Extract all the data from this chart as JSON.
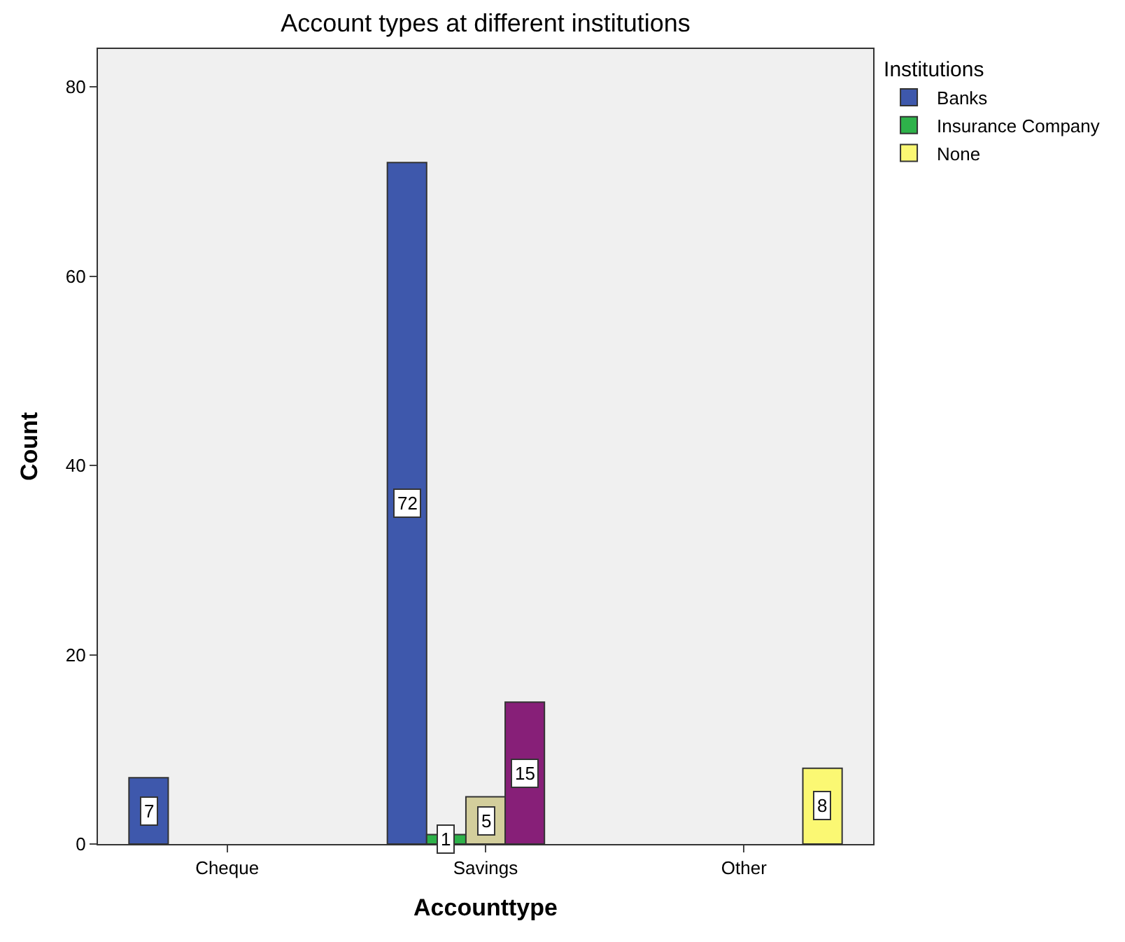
{
  "chart_data": {
    "type": "bar",
    "title": "Account types at different institutions",
    "xlabel": "Accounttype",
    "ylabel": "Count",
    "legend_title": "Institutions",
    "categories": [
      "Cheque",
      "Savings",
      "Other"
    ],
    "series": [
      {
        "name": "Banks",
        "color": "#3e58ac",
        "values": [
          7,
          72,
          null
        ]
      },
      {
        "name": "Insurance Company",
        "color": "#2eb24a",
        "values": [
          null,
          1,
          null
        ]
      },
      {
        "color": "#d3ce9c",
        "values": [
          null,
          5,
          null
        ]
      },
      {
        "color": "#871f78",
        "values": [
          null,
          15,
          null
        ]
      },
      {
        "name": "None",
        "color": "#fbf873",
        "values": [
          null,
          null,
          8
        ]
      }
    ],
    "ylim": [
      0,
      84
    ],
    "yticks": [
      0,
      20,
      40,
      60,
      80
    ],
    "grid": false,
    "legend": "top right",
    "data_labels": true
  }
}
